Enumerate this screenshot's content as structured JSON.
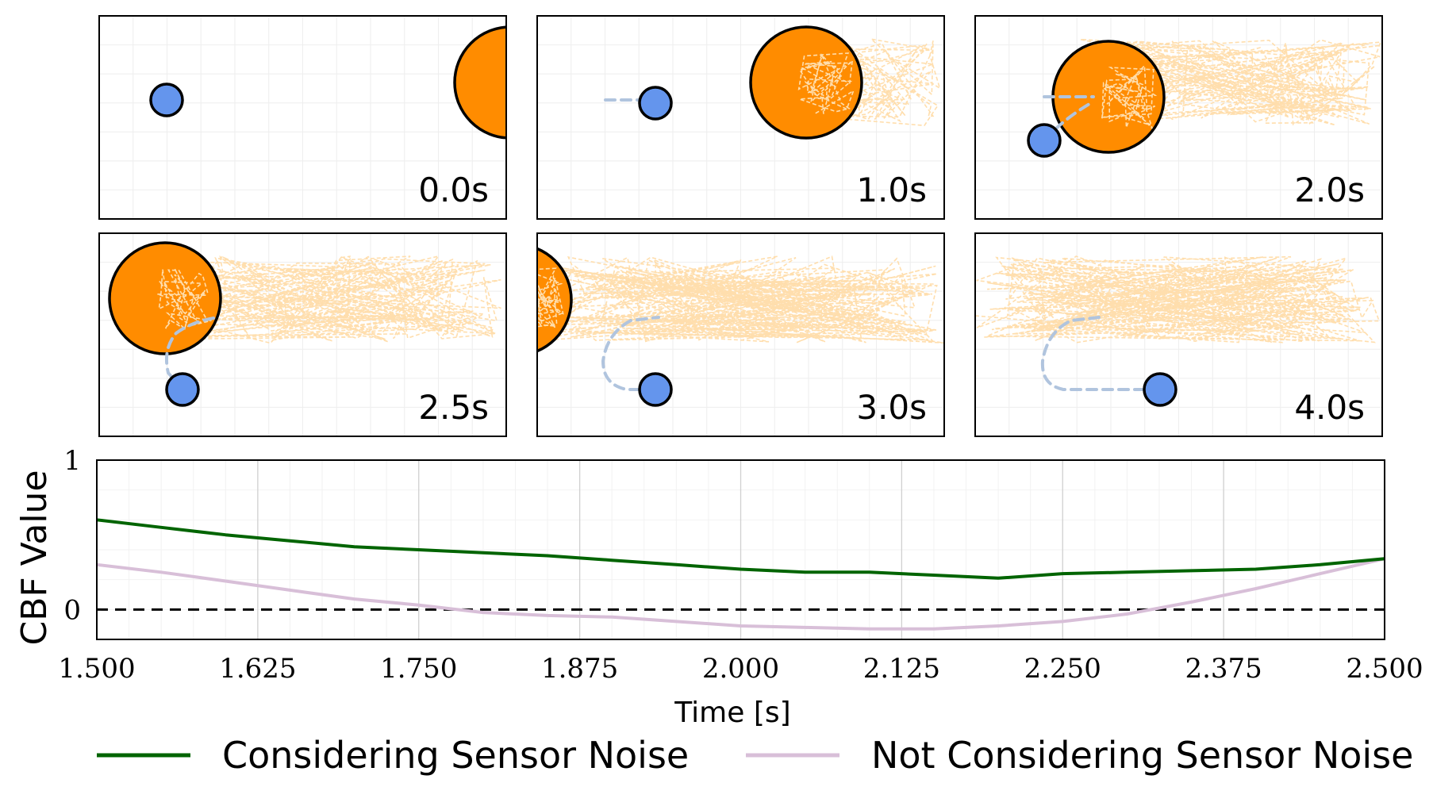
{
  "colors": {
    "obstacle": "#ff8c00",
    "robot": "#6495ed",
    "robot_trail": "#b0c4de",
    "obstacle_noise": "#ffdead",
    "considering": "#006400",
    "not_considering": "#d8bfd8"
  },
  "snapshots": [
    {
      "label": "0.0s"
    },
    {
      "label": "1.0s"
    },
    {
      "label": "2.0s"
    },
    {
      "label": "2.5s"
    },
    {
      "label": "3.0s"
    },
    {
      "label": "4.0s"
    }
  ],
  "chart_data": {
    "type": "line",
    "xlabel": "Time [s]",
    "ylabel": "CBF Value",
    "xlim": [
      1.5,
      2.5
    ],
    "ylim": [
      -0.2,
      1.0
    ],
    "xticks": [
      "1.500",
      "1.625",
      "1.750",
      "1.875",
      "2.000",
      "2.125",
      "2.250",
      "2.375",
      "2.500"
    ],
    "yticks": [
      "1",
      "0"
    ],
    "reference_line": 0,
    "x": [
      1.5,
      1.55,
      1.6,
      1.65,
      1.7,
      1.75,
      1.8,
      1.85,
      1.9,
      1.95,
      2.0,
      2.05,
      2.1,
      2.15,
      2.2,
      2.25,
      2.3,
      2.35,
      2.4,
      2.45,
      2.5
    ],
    "series": [
      {
        "name": "Considering Sensor Noise",
        "values": [
          0.6,
          0.55,
          0.5,
          0.46,
          0.42,
          0.4,
          0.38,
          0.36,
          0.33,
          0.3,
          0.27,
          0.25,
          0.25,
          0.23,
          0.21,
          0.24,
          0.25,
          0.26,
          0.27,
          0.3,
          0.34
        ]
      },
      {
        "name": "Not Considering Sensor Noise",
        "values": [
          0.3,
          0.25,
          0.19,
          0.13,
          0.07,
          0.03,
          -0.02,
          -0.04,
          -0.05,
          -0.08,
          -0.11,
          -0.12,
          -0.13,
          -0.13,
          -0.11,
          -0.08,
          -0.03,
          0.05,
          0.14,
          0.24,
          0.34
        ]
      }
    ],
    "legend_position": "bottom"
  }
}
